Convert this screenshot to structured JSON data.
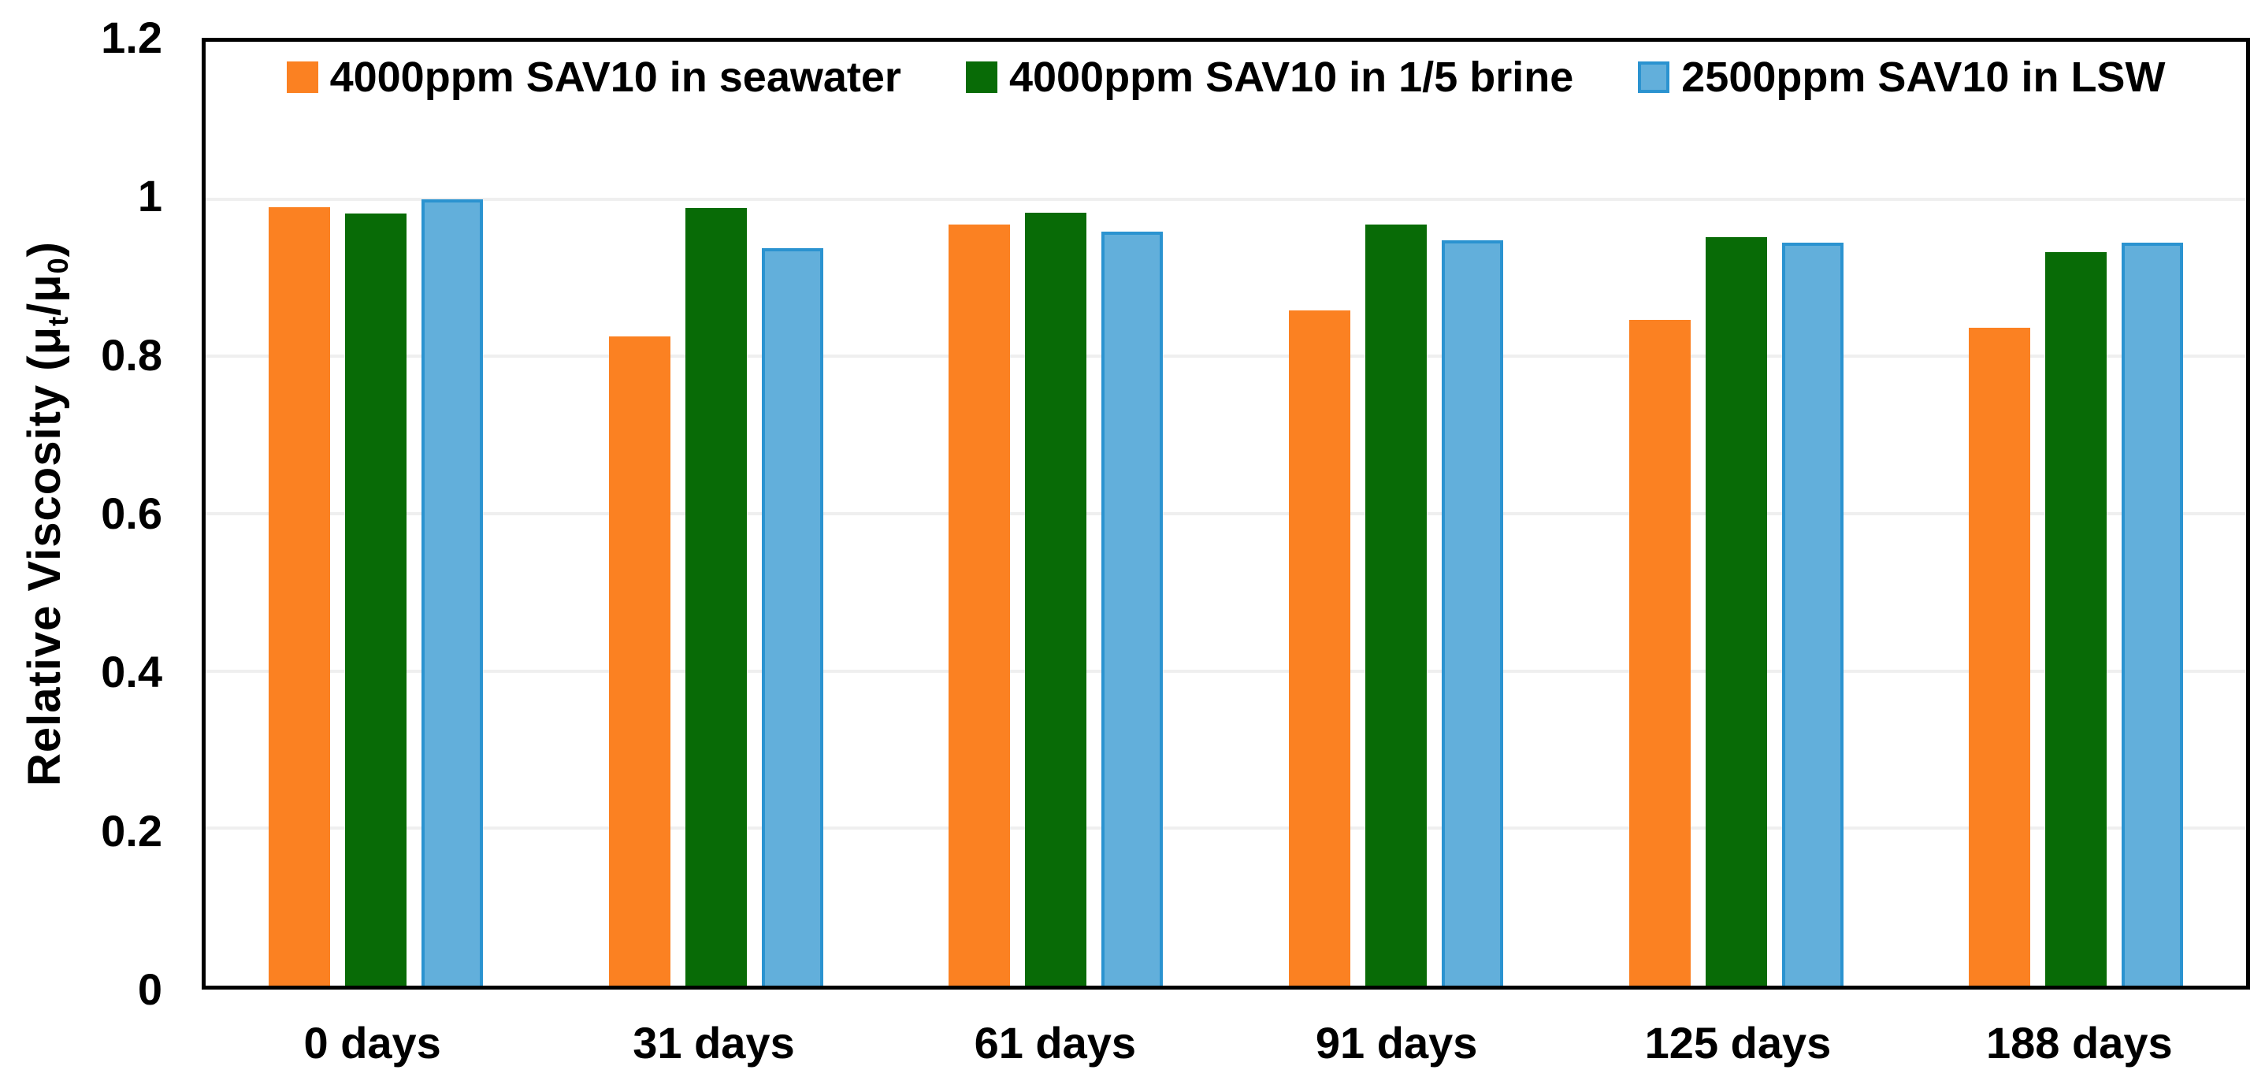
{
  "chart_data": {
    "type": "bar",
    "title": "",
    "ylabel_parts": {
      "prefix": "Relative Viscosity (μ",
      "sub1": "t",
      "mid": "/μ",
      "sub2": "0",
      "suffix": ")"
    },
    "categories": [
      "0 days",
      "31 days",
      "61 days",
      "91 days",
      "125 days",
      "188 days"
    ],
    "series": [
      {
        "name": "4000ppm SAV10 in seawater",
        "color": "#FB8122",
        "border_color": "#FB8122",
        "values": [
          0.99,
          0.825,
          0.968,
          0.858,
          0.846,
          0.836
        ]
      },
      {
        "name": "4000ppm SAV10 in 1/5 brine",
        "color": "#086B06",
        "border_color": "#086B06",
        "values": [
          0.982,
          0.989,
          0.983,
          0.968,
          0.952,
          0.933
        ]
      },
      {
        "name": "2500ppm SAV10 in LSW",
        "color": "#62AFDB",
        "border_color": "#2B93D0",
        "values": [
          1.0,
          0.938,
          0.959,
          0.948,
          0.945,
          0.945
        ]
      }
    ],
    "ylim": [
      0,
      1.2
    ],
    "y_ticks": [
      "1.2",
      "1",
      "0.8",
      "0.6",
      "0.4",
      "0.2",
      "0"
    ],
    "grid": "horizontal",
    "gridline_color": "#EFEFEF",
    "axis_color": "#000000",
    "legend_position": "top-inside"
  }
}
